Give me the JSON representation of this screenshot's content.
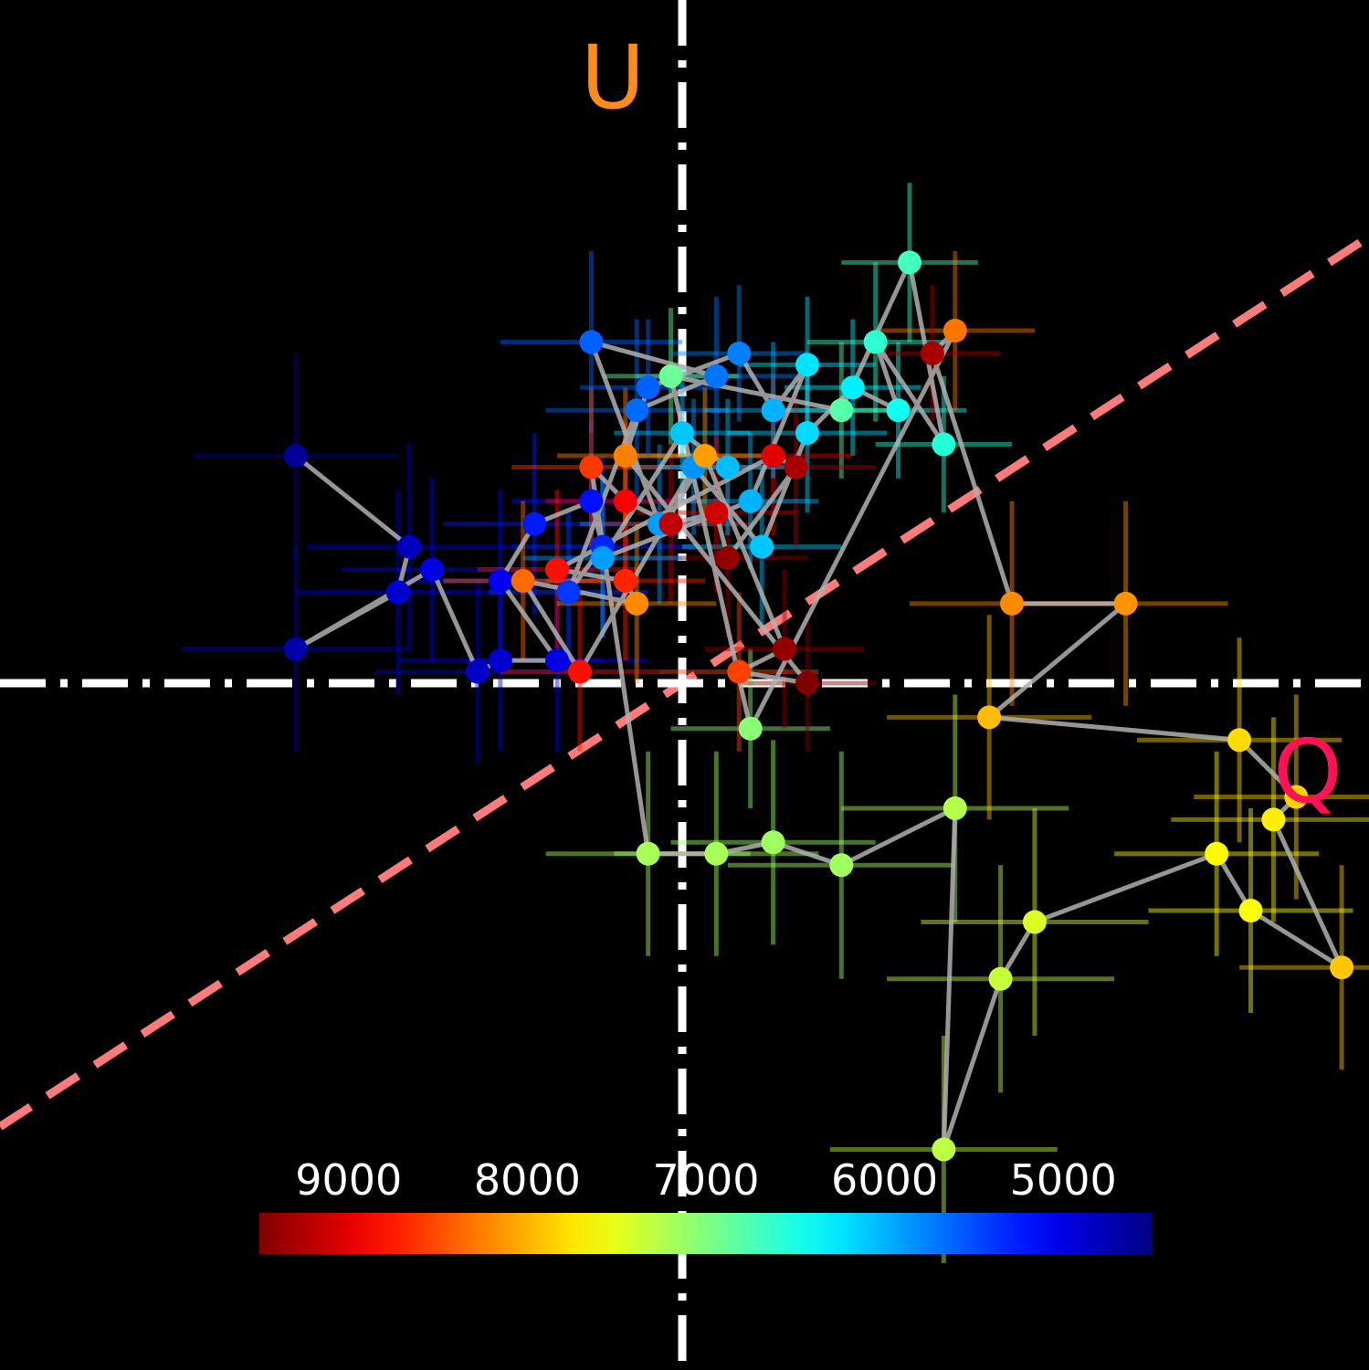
{
  "chart_data": {
    "type": "scatter",
    "title": "",
    "xlabel": "Q",
    "ylabel": "U",
    "xlim": [
      -1.0,
      1.0
    ],
    "ylim": [
      -1.0,
      1.0
    ],
    "grid": false,
    "label_colors": {
      "q": "#ff1155",
      "u": "#ff8c1a"
    },
    "reference_line": {
      "style": "dashed",
      "color": "#ff7b7b",
      "slope": 0.65
    },
    "colorbar": {
      "colormap": "jet-reversed",
      "range": [
        9500,
        4500
      ],
      "ticks": [
        "9000",
        "8000",
        "7000",
        "6000",
        "5000"
      ],
      "tick_values": [
        9000,
        8000,
        7000,
        6000,
        5000
      ],
      "placement": "bottom-inside"
    },
    "path_color": "#b0b0b0",
    "points": [
      {
        "x": -0.34,
        "y": 0.2,
        "xerr": 0.09,
        "yerr": 0.09,
        "c": 4600
      },
      {
        "x": -0.24,
        "y": 0.12,
        "xerr": 0.09,
        "yerr": 0.09,
        "c": 4800
      },
      {
        "x": -0.25,
        "y": 0.08,
        "xerr": 0.09,
        "yerr": 0.09,
        "c": 4900
      },
      {
        "x": -0.34,
        "y": 0.03,
        "xerr": 0.1,
        "yerr": 0.09,
        "c": 4700
      },
      {
        "x": -0.22,
        "y": 0.1,
        "xerr": 0.08,
        "yerr": 0.08,
        "c": 5000
      },
      {
        "x": -0.18,
        "y": 0.01,
        "xerr": 0.09,
        "yerr": 0.08,
        "c": 4850
      },
      {
        "x": -0.16,
        "y": 0.02,
        "xerr": 0.09,
        "yerr": 0.08,
        "c": 4900
      },
      {
        "x": -0.11,
        "y": 0.02,
        "xerr": 0.08,
        "yerr": 0.08,
        "c": 5000
      },
      {
        "x": -0.16,
        "y": 0.09,
        "xerr": 0.08,
        "yerr": 0.08,
        "c": 5100
      },
      {
        "x": -0.13,
        "y": 0.14,
        "xerr": 0.08,
        "yerr": 0.08,
        "c": 5250
      },
      {
        "x": -0.08,
        "y": 0.16,
        "xerr": 0.07,
        "yerr": 0.07,
        "c": 5200
      },
      {
        "x": -0.07,
        "y": 0.12,
        "xerr": 0.08,
        "yerr": 0.08,
        "c": 5300
      },
      {
        "x": -0.1,
        "y": 0.08,
        "xerr": 0.07,
        "yerr": 0.07,
        "c": 5400
      },
      {
        "x": -0.04,
        "y": 0.24,
        "xerr": 0.08,
        "yerr": 0.08,
        "c": 5650
      },
      {
        "x": 0.03,
        "y": 0.27,
        "xerr": 0.07,
        "yerr": 0.07,
        "c": 5700
      },
      {
        "x": -0.08,
        "y": 0.3,
        "xerr": 0.08,
        "yerr": 0.08,
        "c": 5600
      },
      {
        "x": -0.02,
        "y": 0.14,
        "xerr": 0.07,
        "yerr": 0.07,
        "c": 5900
      },
      {
        "x": 0.01,
        "y": 0.19,
        "xerr": 0.06,
        "yerr": 0.06,
        "c": 5850
      },
      {
        "x": 0.07,
        "y": 0.12,
        "xerr": 0.07,
        "yerr": 0.07,
        "c": 6100
      },
      {
        "x": 0.11,
        "y": 0.22,
        "xerr": 0.07,
        "yerr": 0.07,
        "c": 6200
      },
      {
        "x": 0.15,
        "y": 0.26,
        "xerr": 0.06,
        "yerr": 0.06,
        "c": 6300
      },
      {
        "x": 0.19,
        "y": 0.24,
        "xerr": 0.06,
        "yerr": 0.06,
        "c": 6450
      },
      {
        "x": 0.17,
        "y": 0.3,
        "xerr": 0.06,
        "yerr": 0.07,
        "c": 6600
      },
      {
        "x": 0.23,
        "y": 0.21,
        "xerr": 0.06,
        "yerr": 0.06,
        "c": 6550
      },
      {
        "x": 0.2,
        "y": 0.37,
        "xerr": 0.06,
        "yerr": 0.07,
        "c": 6700
      },
      {
        "x": 0.14,
        "y": 0.24,
        "xerr": 0.06,
        "yerr": 0.06,
        "c": 6800
      },
      {
        "x": -0.01,
        "y": 0.27,
        "xerr": 0.06,
        "yerr": 0.06,
        "c": 6900
      },
      {
        "x": 0.06,
        "y": -0.04,
        "xerr": 0.07,
        "yerr": 0.07,
        "c": 7050
      },
      {
        "x": 0.24,
        "y": 0.31,
        "xerr": 0.07,
        "yerr": 0.07,
        "c": 8300
      },
      {
        "x": 0.22,
        "y": 0.29,
        "xerr": 0.06,
        "yerr": 0.06,
        "c": 9300
      },
      {
        "x": 0.29,
        "y": 0.07,
        "xerr": 0.09,
        "yerr": 0.09,
        "c": 8200
      },
      {
        "x": 0.39,
        "y": 0.07,
        "xerr": 0.09,
        "yerr": 0.09,
        "c": 8150
      },
      {
        "x": 0.27,
        "y": -0.03,
        "xerr": 0.09,
        "yerr": 0.09,
        "c": 7950
      },
      {
        "x": 0.49,
        "y": -0.05,
        "xerr": 0.09,
        "yerr": 0.09,
        "c": 7800
      },
      {
        "x": 0.54,
        "y": -0.1,
        "xerr": 0.09,
        "yerr": 0.09,
        "c": 7850
      },
      {
        "x": 0.52,
        "y": -0.12,
        "xerr": 0.09,
        "yerr": 0.09,
        "c": 7700
      },
      {
        "x": 0.58,
        "y": -0.25,
        "xerr": 0.09,
        "yerr": 0.09,
        "c": 7900
      },
      {
        "x": 0.5,
        "y": -0.2,
        "xerr": 0.09,
        "yerr": 0.09,
        "c": 7600
      },
      {
        "x": 0.47,
        "y": -0.15,
        "xerr": 0.09,
        "yerr": 0.09,
        "c": 7650
      },
      {
        "x": 0.31,
        "y": -0.21,
        "xerr": 0.1,
        "yerr": 0.1,
        "c": 7450
      },
      {
        "x": 0.28,
        "y": -0.26,
        "xerr": 0.1,
        "yerr": 0.1,
        "c": 7350
      },
      {
        "x": 0.23,
        "y": -0.41,
        "xerr": 0.1,
        "yerr": 0.1,
        "c": 7300
      },
      {
        "x": 0.24,
        "y": -0.11,
        "xerr": 0.1,
        "yerr": 0.1,
        "c": 7250
      },
      {
        "x": 0.14,
        "y": -0.16,
        "xerr": 0.1,
        "yerr": 0.1,
        "c": 7150
      },
      {
        "x": 0.08,
        "y": -0.14,
        "xerr": 0.09,
        "yerr": 0.09,
        "c": 7150
      },
      {
        "x": 0.03,
        "y": -0.15,
        "xerr": 0.09,
        "yerr": 0.09,
        "c": 7200
      },
      {
        "x": -0.03,
        "y": -0.15,
        "xerr": 0.09,
        "yerr": 0.09,
        "c": 7200
      },
      {
        "x": -0.08,
        "y": 0.19,
        "xerr": 0.07,
        "yerr": 0.07,
        "c": 8600
      },
      {
        "x": -0.05,
        "y": 0.16,
        "xerr": 0.07,
        "yerr": 0.07,
        "c": 8900
      },
      {
        "x": -0.01,
        "y": 0.14,
        "xerr": 0.07,
        "yerr": 0.07,
        "c": 9200
      },
      {
        "x": 0.03,
        "y": 0.15,
        "xerr": 0.07,
        "yerr": 0.07,
        "c": 9100
      },
      {
        "x": 0.04,
        "y": 0.11,
        "xerr": 0.07,
        "yerr": 0.07,
        "c": 9400
      },
      {
        "x": 0.1,
        "y": 0.19,
        "xerr": 0.07,
        "yerr": 0.07,
        "c": 9300
      },
      {
        "x": 0.08,
        "y": 0.2,
        "xerr": 0.07,
        "yerr": 0.07,
        "c": 9000
      },
      {
        "x": -0.11,
        "y": 0.1,
        "xerr": 0.07,
        "yerr": 0.07,
        "c": 8800
      },
      {
        "x": -0.05,
        "y": 0.09,
        "xerr": 0.07,
        "yerr": 0.07,
        "c": 8700
      },
      {
        "x": -0.04,
        "y": 0.07,
        "xerr": 0.07,
        "yerr": 0.07,
        "c": 8200
      },
      {
        "x": -0.14,
        "y": 0.09,
        "xerr": 0.07,
        "yerr": 0.07,
        "c": 8350
      },
      {
        "x": -0.09,
        "y": 0.01,
        "xerr": 0.07,
        "yerr": 0.07,
        "c": 8800
      },
      {
        "x": 0.02,
        "y": 0.2,
        "xerr": 0.06,
        "yerr": 0.06,
        "c": 8100
      },
      {
        "x": 0.09,
        "y": 0.03,
        "xerr": 0.07,
        "yerr": 0.07,
        "c": 9400
      },
      {
        "x": 0.05,
        "y": 0.01,
        "xerr": 0.07,
        "yerr": 0.07,
        "c": 8550
      },
      {
        "x": 0.11,
        "y": 0.0,
        "xerr": 0.06,
        "yerr": 0.06,
        "c": 9500
      },
      {
        "x": -0.05,
        "y": 0.2,
        "xerr": 0.06,
        "yerr": 0.06,
        "c": 8250
      },
      {
        "x": -0.03,
        "y": 0.26,
        "xerr": 0.06,
        "yerr": 0.06,
        "c": 5600
      },
      {
        "x": 0.05,
        "y": 0.29,
        "xerr": 0.06,
        "yerr": 0.06,
        "c": 5750
      },
      {
        "x": 0.08,
        "y": 0.24,
        "xerr": 0.06,
        "yerr": 0.06,
        "c": 6000
      },
      {
        "x": 0.11,
        "y": 0.28,
        "xerr": 0.06,
        "yerr": 0.06,
        "c": 6250
      },
      {
        "x": 0.06,
        "y": 0.16,
        "xerr": 0.06,
        "yerr": 0.06,
        "c": 6000
      },
      {
        "x": -0.07,
        "y": 0.11,
        "xerr": 0.07,
        "yerr": 0.07,
        "c": 5900
      },
      {
        "x": 0.0,
        "y": 0.22,
        "xerr": 0.06,
        "yerr": 0.06,
        "c": 6100
      },
      {
        "x": 0.04,
        "y": 0.19,
        "xerr": 0.06,
        "yerr": 0.06,
        "c": 6050
      }
    ]
  }
}
